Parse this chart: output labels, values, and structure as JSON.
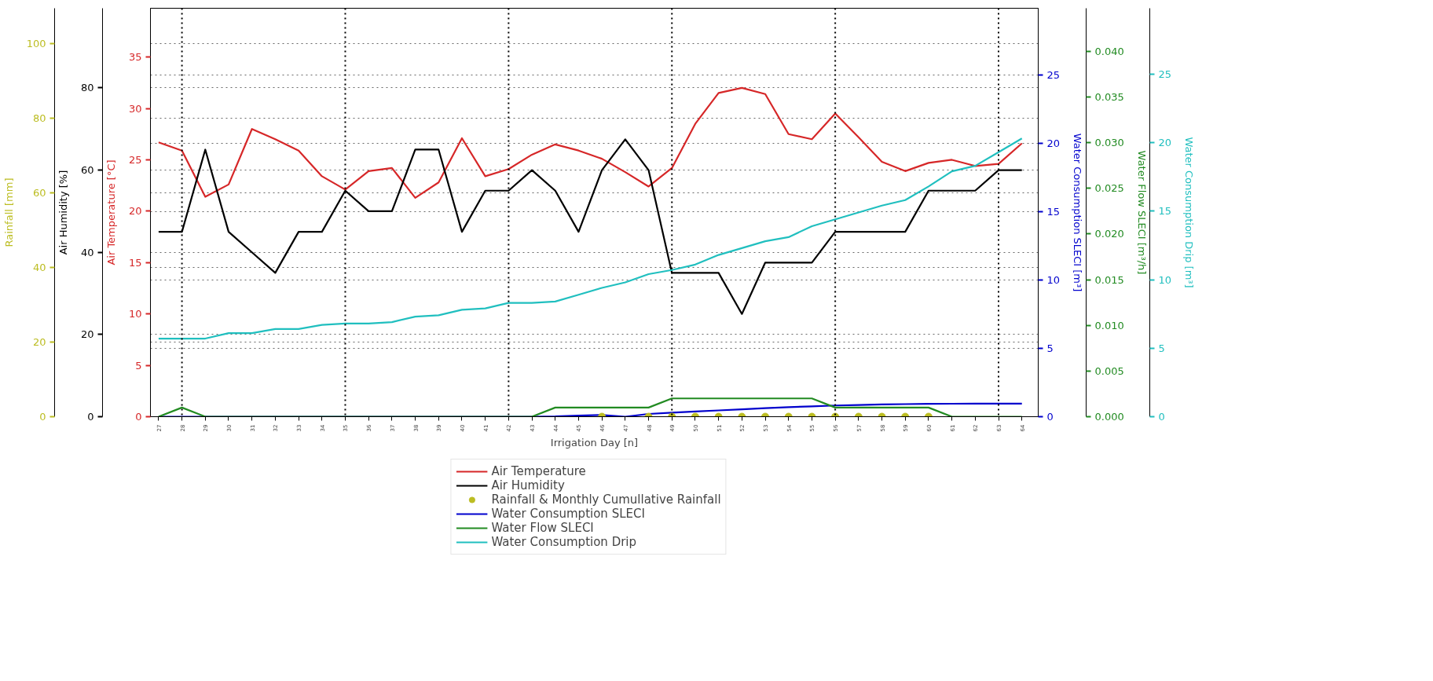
{
  "chart_data": [
    {
      "type": "line",
      "x": [
        27,
        28,
        29,
        30,
        31,
        32,
        33,
        34,
        35,
        36,
        37,
        38,
        39,
        40,
        41,
        42,
        43,
        44,
        45,
        46,
        47,
        48,
        49,
        50,
        51,
        52,
        53,
        54,
        55,
        56,
        57,
        58,
        59,
        60,
        61,
        62,
        63,
        64
      ],
      "xlim": [
        26.65,
        64.7
      ],
      "xticks": [
        27,
        28,
        29,
        30,
        31,
        32,
        33,
        34,
        35,
        36,
        37,
        38,
        39,
        40,
        41,
        42,
        43,
        44,
        45,
        46,
        47,
        48,
        49,
        50,
        51,
        52,
        53,
        54,
        55,
        56,
        57,
        58,
        59,
        60,
        61,
        62,
        63,
        64
      ],
      "xlabel": "Irrigation Day [n]",
      "ylabel": "Air Temperature [°C]",
      "ylim": [
        0,
        39.75
      ],
      "yticks": [
        0,
        5,
        10,
        15,
        20,
        25,
        30,
        35
      ],
      "y2label": "Water Consumption SLECI [m³]",
      "y2lim": [
        0,
        29.9
      ],
      "y2ticks": [
        0,
        5,
        10,
        15,
        20,
        25
      ],
      "series": [
        {
          "name": "Air Temperature",
          "color": "#d62728",
          "values": [
            26.7,
            25.9,
            21.4,
            22.6,
            28.0,
            27.0,
            25.9,
            23.4,
            22.1,
            23.9,
            24.2,
            21.3,
            22.8,
            27.1,
            23.4,
            24.1,
            25.5,
            26.5,
            25.9,
            25.1,
            23.8,
            22.4,
            24.2,
            28.5,
            31.5,
            32.0,
            31.4,
            27.5,
            27.0,
            29.5,
            27.2,
            24.8,
            23.9,
            24.7,
            25.0,
            24.4,
            24.6,
            26.6
          ]
        },
        {
          "name": "Water Consumption SLECI",
          "color": "#0000cd",
          "axis": "y2",
          "values": [
            0,
            0,
            0,
            0,
            0,
            0,
            0,
            0,
            0,
            0,
            0,
            0,
            0,
            0,
            0,
            0,
            0,
            0.02,
            0.08,
            0.12,
            0,
            0.2,
            0.3,
            0.38,
            0.46,
            0.54,
            0.62,
            0.7,
            0.76,
            0.82,
            0.86,
            0.9,
            0.92,
            0.94,
            0.95,
            0.96,
            0.96,
            0.96
          ]
        }
      ],
      "ref_lines": [
        {
          "axis": "x",
          "value": 28,
          "color": "#000000",
          "line_style": "dotted"
        },
        {
          "axis": "x",
          "value": 35,
          "color": "#000000",
          "line_style": "dotted"
        },
        {
          "axis": "x",
          "value": 42,
          "color": "#000000",
          "line_style": "dotted"
        },
        {
          "axis": "x",
          "value": 49,
          "color": "#000000",
          "line_style": "dotted"
        },
        {
          "axis": "x",
          "value": 56,
          "color": "#000000",
          "line_style": "dotted"
        },
        {
          "axis": "x",
          "value": 63,
          "color": "#000000",
          "line_style": "dotted"
        }
      ],
      "grid": "y",
      "legend": "bottom"
    },
    {
      "type": "line",
      "x": [
        27,
        28,
        29,
        30,
        31,
        32,
        33,
        34,
        35,
        36,
        37,
        38,
        39,
        40,
        41,
        42,
        43,
        44,
        45,
        46,
        47,
        48,
        49,
        50,
        51,
        52,
        53,
        54,
        55,
        56,
        57,
        58,
        59,
        60,
        61,
        62,
        63,
        64
      ],
      "xlim": [
        26.65,
        64.7
      ],
      "tick_labels": "y",
      "ylabel": "Air Humidity [%]",
      "ylim": [
        0,
        99.4
      ],
      "yticks": [
        0,
        20,
        40,
        60,
        80
      ],
      "y2label": "Water Flow SLECI [m³/h]",
      "y2lim": [
        0,
        0.0447
      ],
      "y2ticks": [
        {
          "value": 0,
          "label": "0.000"
        },
        {
          "value": 0.005,
          "label": "0.005"
        },
        {
          "value": 0.01,
          "label": "0.010"
        },
        {
          "value": 0.015,
          "label": "0.015"
        },
        {
          "value": 0.02,
          "label": "0.020"
        },
        {
          "value": 0.025,
          "label": "0.025"
        },
        {
          "value": 0.03,
          "label": "0.030"
        },
        {
          "value": 0.035,
          "label": "0.035"
        },
        {
          "value": 0.04,
          "label": "0.040"
        }
      ],
      "series": [
        {
          "name": "Air Humidity",
          "color": "#000000",
          "values": [
            45,
            45,
            65,
            45,
            40,
            35,
            45,
            45,
            55,
            50,
            50,
            65,
            65,
            45,
            55,
            55,
            60,
            55,
            45,
            60,
            67.5,
            60,
            35,
            35,
            35,
            25,
            37.5,
            37.5,
            37.5,
            45,
            45,
            45,
            45,
            55,
            55,
            55,
            60,
            60
          ]
        },
        {
          "name": "Water Flow SLECI",
          "color": "#228b22",
          "axis": "y2",
          "values": [
            0,
            0.001,
            0,
            0,
            0,
            0,
            0,
            0,
            0,
            0,
            0,
            0,
            0,
            0,
            0,
            0,
            0,
            0.001,
            0.001,
            0.001,
            0.001,
            0.001,
            0.002,
            0.002,
            0.002,
            0.002,
            0.002,
            0.002,
            0.002,
            0.001,
            0.001,
            0.001,
            0.001,
            0.001,
            0,
            0,
            0,
            0
          ]
        }
      ],
      "grid": "y",
      "legend": "bottom"
    },
    {
      "type": "line",
      "x": [
        27,
        28,
        29,
        30,
        31,
        32,
        33,
        34,
        35,
        36,
        37,
        38,
        39,
        40,
        41,
        42,
        43,
        44,
        45,
        46,
        47,
        48,
        49,
        50,
        51,
        52,
        53,
        54,
        55,
        56,
        57,
        58,
        59,
        60,
        61,
        62,
        63,
        64
      ],
      "xlim": [
        26.65,
        64.7
      ],
      "tick_labels": "y",
      "ylabel": "Rainfall [mm]",
      "ylim": [
        0,
        109.5
      ],
      "yticks": [
        0,
        20,
        40,
        60,
        80,
        100
      ],
      "y2label": "Water Consumption Drip [m³]",
      "y2lim": [
        0,
        29.8
      ],
      "y2ticks": [
        0,
        5,
        10,
        15,
        20,
        25
      ],
      "series": [
        {
          "name": "Rainfall & Monthly Cumullative Rainfall",
          "type": "scatter",
          "marker": "circle",
          "color": "#bcbd22",
          "values": [
            null,
            null,
            null,
            null,
            null,
            null,
            null,
            null,
            null,
            null,
            null,
            null,
            null,
            null,
            null,
            null,
            null,
            null,
            null,
            0,
            null,
            0,
            0,
            0,
            0,
            0,
            0,
            0,
            0,
            0,
            0,
            0,
            0,
            0,
            null,
            null,
            null,
            null
          ]
        },
        {
          "name": "Water Consumption Drip",
          "color": "#20bfbf",
          "axis": "y2",
          "values": [
            5.7,
            5.7,
            5.7,
            6.1,
            6.1,
            6.4,
            6.4,
            6.7,
            6.8,
            6.8,
            6.9,
            7.3,
            7.4,
            7.8,
            7.9,
            8.3,
            8.3,
            8.4,
            8.9,
            9.4,
            9.8,
            10.4,
            10.7,
            11.1,
            11.8,
            12.3,
            12.8,
            13.1,
            13.9,
            14.4,
            14.9,
            15.4,
            15.8,
            16.8,
            17.9,
            18.3,
            19.3,
            20.3
          ]
        }
      ],
      "grid": "y",
      "legend": "bottom"
    }
  ]
}
